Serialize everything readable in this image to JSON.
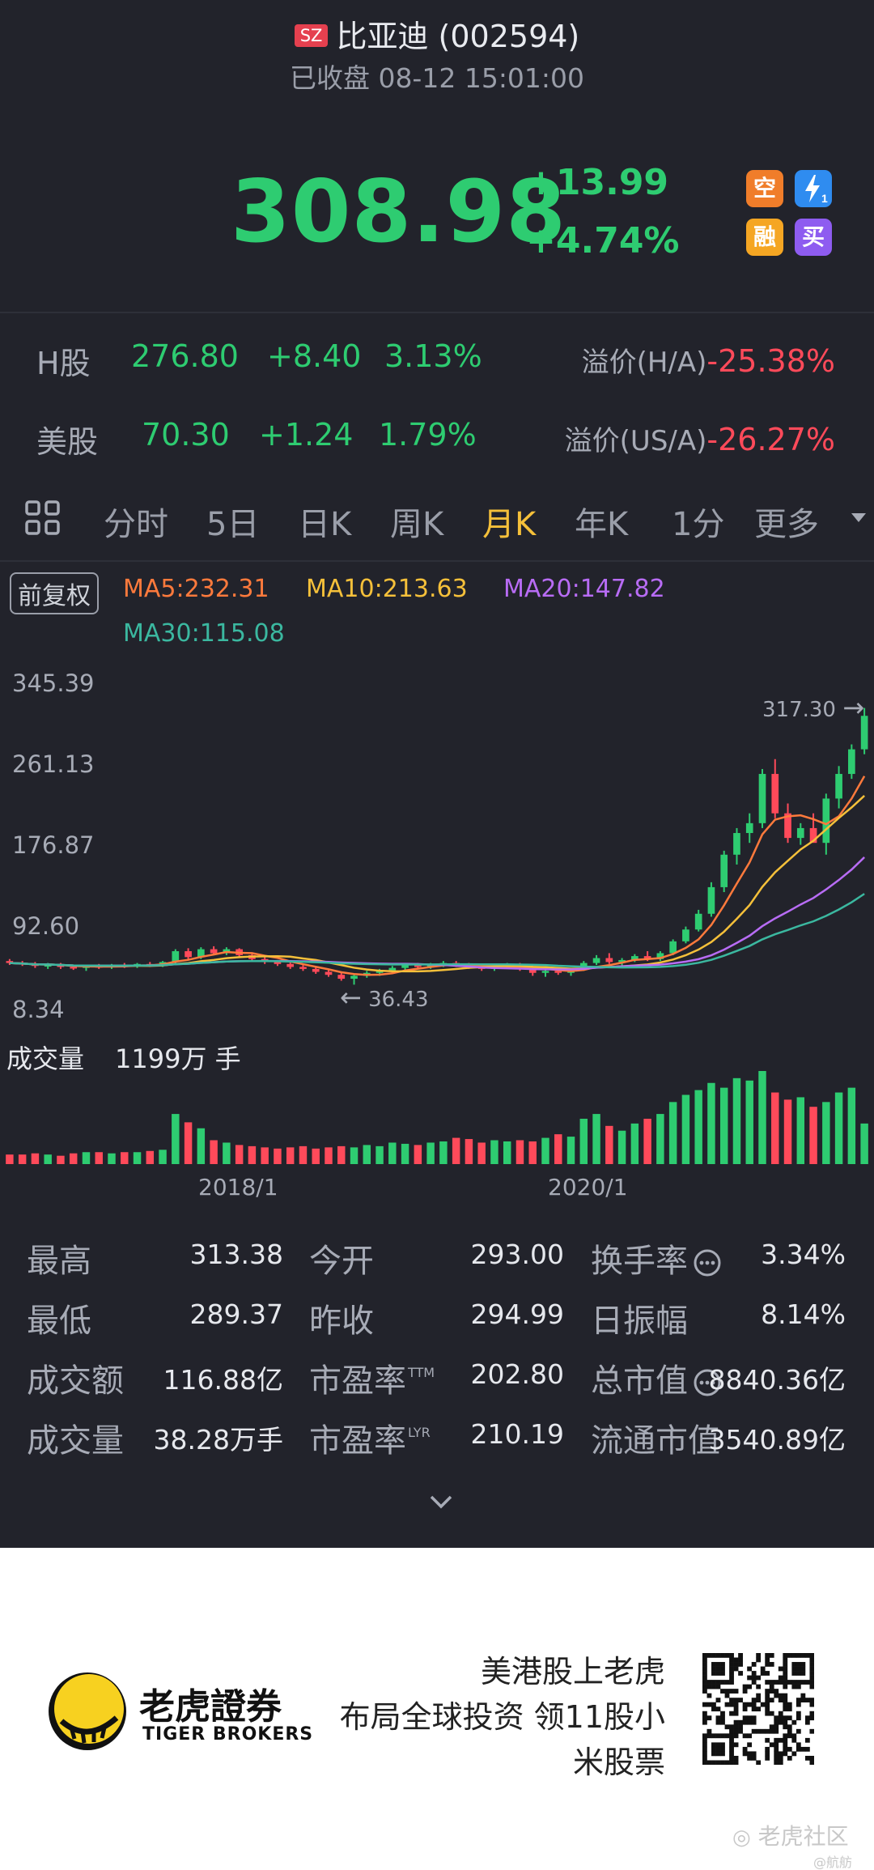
{
  "header": {
    "market_badge": "SZ",
    "name": "比亚迪",
    "code": "(002594)",
    "status": "已收盘 08-12 15:01:00"
  },
  "quote": {
    "price": "308.98",
    "change": "+13.99",
    "change_pct": "+4.74%",
    "badges": [
      {
        "label": "空",
        "color": "#f07d2a"
      },
      {
        "label": "1",
        "color": "#2f8cf0"
      },
      {
        "label": "融",
        "color": "#f5a623"
      },
      {
        "label": "买",
        "color": "#8e5cf0"
      }
    ]
  },
  "cross": {
    "h": {
      "label": "H股",
      "price": "276.80",
      "change": "+8.40",
      "pct": "3.13%",
      "premium_label": "溢价(H/A)",
      "premium": "-25.38%"
    },
    "us": {
      "label": "美股",
      "price": "70.30",
      "change": "+1.24",
      "pct": "1.79%",
      "premium_label": "溢价(US/A)",
      "premium": "-26.27%"
    }
  },
  "tabs": [
    "分时",
    "5日",
    "日K",
    "周K",
    "月K",
    "年K",
    "1分",
    "更多"
  ],
  "active_tab": "月K",
  "indicators": {
    "adjust": "前复权",
    "ma5": "MA5:232.31",
    "ma10": "MA10:213.63",
    "ma20": "MA20:147.82",
    "ma30": "MA30:115.08",
    "colors": {
      "ma5": "#ff7a3c",
      "ma10": "#f5c03a",
      "ma20": "#b86cf5",
      "ma30": "#3bb8a0",
      "up": "#2ecc71",
      "down": "#ff4a5a"
    }
  },
  "chart_data": {
    "type": "candlestick",
    "y_ticks": [
      "345.39",
      "261.13",
      "176.87",
      "92.60",
      "8.34"
    ],
    "ylim": [
      8.34,
      345.39
    ],
    "x_ticks": [
      "2018/1",
      "2020/1"
    ],
    "high_marker": "317.30",
    "low_marker": "36.43",
    "candles_ohlc": [
      [
        60,
        62,
        56,
        58
      ],
      [
        58,
        60,
        55,
        57
      ],
      [
        57,
        59,
        53,
        55
      ],
      [
        55,
        58,
        52,
        56
      ],
      [
        56,
        58,
        52,
        54
      ],
      [
        54,
        56,
        51,
        53
      ],
      [
        53,
        56,
        50,
        55
      ],
      [
        55,
        57,
        52,
        54
      ],
      [
        54,
        57,
        52,
        56
      ],
      [
        56,
        58,
        53,
        55
      ],
      [
        55,
        58,
        53,
        57
      ],
      [
        57,
        59,
        54,
        56
      ],
      [
        56,
        60,
        54,
        59
      ],
      [
        59,
        72,
        57,
        70
      ],
      [
        70,
        73,
        62,
        64
      ],
      [
        64,
        74,
        62,
        72
      ],
      [
        72,
        75,
        66,
        68
      ],
      [
        68,
        74,
        66,
        72
      ],
      [
        72,
        73,
        64,
        66
      ],
      [
        66,
        68,
        60,
        62
      ],
      [
        62,
        64,
        57,
        59
      ],
      [
        59,
        61,
        55,
        57
      ],
      [
        57,
        59,
        52,
        54
      ],
      [
        54,
        56,
        50,
        52
      ],
      [
        52,
        54,
        47,
        49
      ],
      [
        49,
        52,
        44,
        46
      ],
      [
        46,
        49,
        40,
        42
      ],
      [
        42,
        47,
        36,
        45
      ],
      [
        45,
        50,
        43,
        48
      ],
      [
        48,
        52,
        45,
        50
      ],
      [
        50,
        55,
        48,
        53
      ],
      [
        53,
        58,
        51,
        56
      ],
      [
        56,
        58,
        52,
        54
      ],
      [
        54,
        58,
        52,
        57
      ],
      [
        57,
        60,
        54,
        58
      ],
      [
        58,
        60,
        54,
        56
      ],
      [
        56,
        58,
        52,
        54
      ],
      [
        54,
        56,
        50,
        52
      ],
      [
        52,
        56,
        50,
        55
      ],
      [
        55,
        58,
        52,
        56
      ],
      [
        56,
        58,
        50,
        52
      ],
      [
        52,
        55,
        45,
        48
      ],
      [
        48,
        52,
        44,
        50
      ],
      [
        50,
        53,
        46,
        48
      ],
      [
        48,
        52,
        45,
        51
      ],
      [
        51,
        60,
        50,
        58
      ],
      [
        58,
        66,
        56,
        63
      ],
      [
        63,
        68,
        57,
        59
      ],
      [
        59,
        63,
        55,
        61
      ],
      [
        61,
        67,
        59,
        65
      ],
      [
        65,
        70,
        60,
        62
      ],
      [
        62,
        70,
        60,
        68
      ],
      [
        68,
        82,
        66,
        80
      ],
      [
        80,
        95,
        78,
        92
      ],
      [
        92,
        112,
        90,
        108
      ],
      [
        108,
        140,
        105,
        135
      ],
      [
        135,
        172,
        130,
        168
      ],
      [
        168,
        195,
        158,
        190
      ],
      [
        190,
        210,
        180,
        200
      ],
      [
        200,
        255,
        195,
        250
      ],
      [
        250,
        265,
        205,
        210
      ],
      [
        210,
        220,
        180,
        185
      ],
      [
        185,
        200,
        178,
        195
      ],
      [
        195,
        210,
        190,
        180
      ],
      [
        180,
        230,
        168,
        225
      ],
      [
        225,
        258,
        215,
        250
      ],
      [
        250,
        280,
        245,
        275
      ],
      [
        275,
        317,
        270,
        309
      ]
    ],
    "volume_label": "成交量",
    "volume_value": "1199万 手",
    "volumes": [
      8,
      8,
      9,
      8,
      7,
      9,
      10,
      10,
      9,
      10,
      10,
      11,
      12,
      42,
      35,
      30,
      20,
      18,
      16,
      15,
      14,
      13,
      14,
      15,
      13,
      14,
      15,
      14,
      16,
      15,
      18,
      17,
      16,
      18,
      19,
      22,
      21,
      18,
      20,
      19,
      20,
      19,
      22,
      25,
      23,
      38,
      42,
      32,
      28,
      34,
      38,
      42,
      52,
      58,
      62,
      68,
      64,
      72,
      70,
      78,
      60,
      54,
      56,
      48,
      52,
      60,
      64,
      34
    ]
  },
  "stats": [
    [
      {
        "label": "最高",
        "value": "313.38"
      },
      {
        "label": "今开",
        "value": "293.00"
      },
      {
        "label": "换手率",
        "value": "3.34%",
        "info": true
      }
    ],
    [
      {
        "label": "最低",
        "value": "289.37"
      },
      {
        "label": "昨收",
        "value": "294.99"
      },
      {
        "label": "日振幅",
        "value": "8.14%"
      }
    ],
    [
      {
        "label": "成交额",
        "value": "116.88亿"
      },
      {
        "label": "市盈率",
        "sup": "TTM",
        "value": "202.80"
      },
      {
        "label": "总市值",
        "value": "8840.36亿",
        "info": true
      }
    ],
    [
      {
        "label": "成交量",
        "value": "38.28万手"
      },
      {
        "label": "市盈率",
        "sup": "LYR",
        "value": "210.19"
      },
      {
        "label": "流通市值",
        "value": "3540.89亿"
      }
    ]
  ],
  "footer": {
    "brand_cn": "老虎證券",
    "brand_en": "TIGER BROKERS",
    "slogan1": "美港股上老虎",
    "slogan2": "布局全球投资 领11股小",
    "slogan3": "米股票",
    "watermark": "老虎社区",
    "user": "@航舫"
  }
}
